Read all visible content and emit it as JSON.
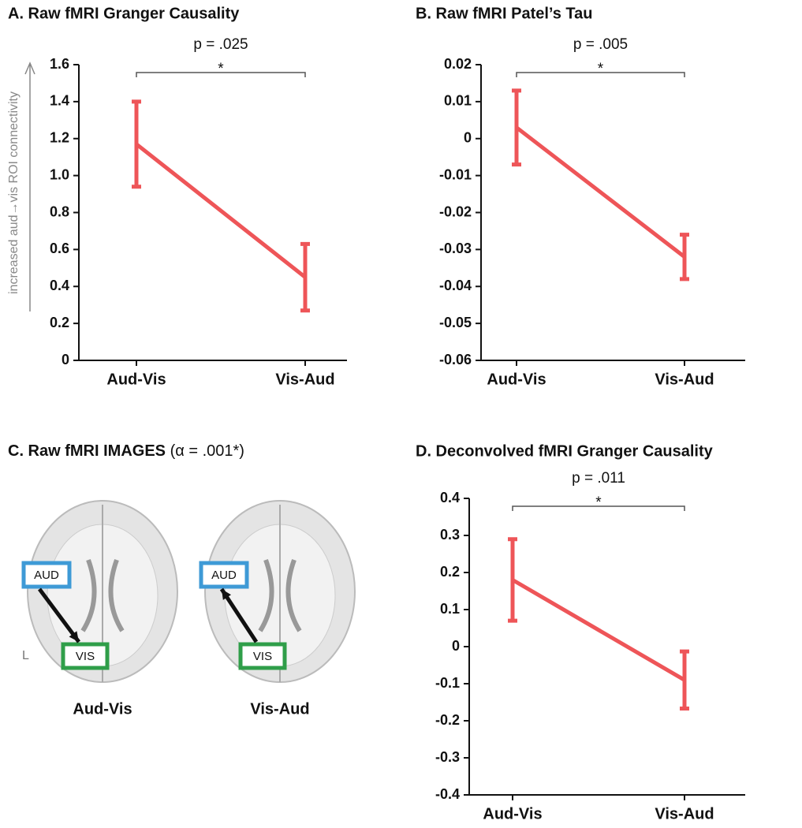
{
  "chart_data": [
    {
      "type": "line",
      "title": "A. Raw fMRI Granger Causality",
      "y_label": "increased aud→vis ROI connectivity",
      "categories": [
        "Aud-Vis",
        "Vis-Aud"
      ],
      "values": [
        1.17,
        0.45
      ],
      "errors": [
        0.23,
        0.18
      ],
      "color": "#ee5558",
      "ylim": [
        0,
        1.6
      ],
      "yticks": [
        0,
        0.2,
        0.4,
        0.6,
        0.8,
        {
          "value": 1,
          "label": "1.0"
        },
        1.2,
        1.4,
        1.6
      ],
      "annotation": "p = .025",
      "significance": "*"
    },
    {
      "type": "line",
      "title": "B. Raw fMRI Patel’s Tau",
      "categories": [
        "Aud-Vis",
        "Vis-Aud"
      ],
      "values": [
        0.003,
        -0.032
      ],
      "errors": [
        0.01,
        0.006
      ],
      "color": "#ee5558",
      "ylim": [
        -0.06,
        0.02
      ],
      "yticks": [
        -0.06,
        -0.05,
        -0.04,
        -0.03,
        -0.02,
        -0.01,
        0,
        0.01,
        0.02
      ],
      "annotation": "p = .005",
      "significance": "*"
    },
    {
      "type": "line",
      "title": "D. Deconvolved fMRI Granger Causality",
      "categories": [
        "Aud-Vis",
        "Vis-Aud"
      ],
      "values": [
        0.18,
        -0.09
      ],
      "errors": [
        0.11,
        0.077
      ],
      "color": "#ee5558",
      "ylim": [
        -0.4,
        0.4
      ],
      "yticks": [
        -0.4,
        -0.3,
        -0.2,
        -0.1,
        0,
        0.1,
        0.2,
        0.3,
        0.4
      ],
      "annotation": "p = .011",
      "significance": "*"
    }
  ],
  "image_panel": {
    "title": "C. Raw fMRI IMAGES",
    "note": "(α = .001*)",
    "roi_top": "AUD",
    "roi_bottom": "VIS",
    "side": "L",
    "captions": [
      "Aud-Vis",
      "Vis-Aud"
    ]
  }
}
